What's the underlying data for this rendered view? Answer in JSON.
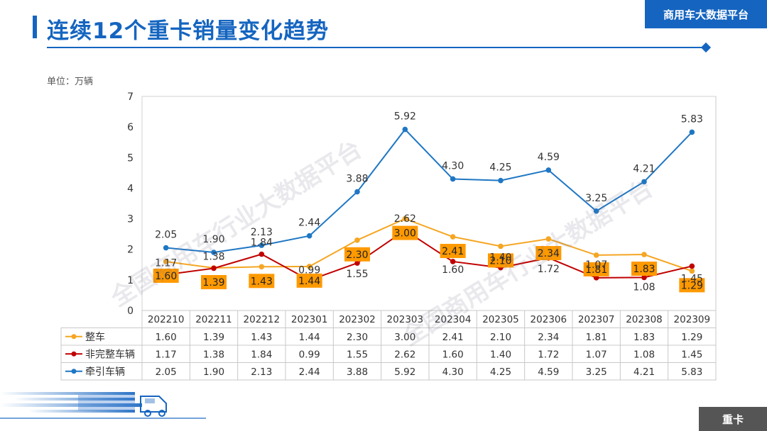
{
  "header": {
    "title": "连续12个重卡销量变化趋势",
    "brand": "商用车大数据平台",
    "watermark": "全国商用车行业大数据平台"
  },
  "unit_label": "单位：万辆",
  "footer": {
    "tag": "重卡"
  },
  "colors": {
    "accent": "#1565c0",
    "series_whole": "#f5a623",
    "series_incomplete": "#c00000",
    "series_tractor": "#1f77c4",
    "label_box": "#ff9900"
  },
  "chart_data": {
    "type": "line",
    "title": "连续12个重卡销量变化趋势",
    "ylabel": "万辆",
    "xlabel": "",
    "ylim": [
      0,
      7
    ],
    "yticks": [
      0,
      1,
      2,
      3,
      4,
      5,
      6,
      7
    ],
    "grid": false,
    "categories": [
      "202210",
      "202211",
      "202212",
      "202301",
      "202302",
      "202303",
      "202304",
      "202305",
      "202306",
      "202307",
      "202308",
      "202309"
    ],
    "series": [
      {
        "name": "整车",
        "color": "#f5a623",
        "marker": "circle",
        "label_box": true,
        "values": [
          1.6,
          1.39,
          1.43,
          1.44,
          2.3,
          3.0,
          2.41,
          2.1,
          2.34,
          1.81,
          1.83,
          1.29
        ],
        "display": [
          "1.60",
          "1.39",
          "1.43",
          "1.44",
          "2.30",
          "3.00",
          "2.41",
          "2.10",
          "2.34",
          "1.81",
          "1.83",
          "1.29"
        ]
      },
      {
        "name": "非完整车辆",
        "color": "#c00000",
        "marker": "circle",
        "label_box": false,
        "values": [
          1.17,
          1.38,
          1.84,
          0.99,
          1.55,
          2.62,
          1.6,
          1.4,
          1.72,
          1.07,
          1.08,
          1.45
        ],
        "display": [
          "1.17",
          "1.38",
          "1.84",
          "0.99",
          "1.55",
          "2.62",
          "1.60",
          "1.40",
          "1.72",
          "1.07",
          "1.08",
          "1.45"
        ]
      },
      {
        "name": "牵引车辆",
        "color": "#1f77c4",
        "marker": "circle",
        "label_box": false,
        "values": [
          2.05,
          1.9,
          2.13,
          2.44,
          3.88,
          5.92,
          4.3,
          4.25,
          4.59,
          3.25,
          4.21,
          5.83
        ],
        "display": [
          "2.05",
          "1.90",
          "2.13",
          "2.44",
          "3.88",
          "5.92",
          "4.30",
          "4.25",
          "4.59",
          "3.25",
          "4.21",
          "5.83"
        ]
      }
    ]
  }
}
